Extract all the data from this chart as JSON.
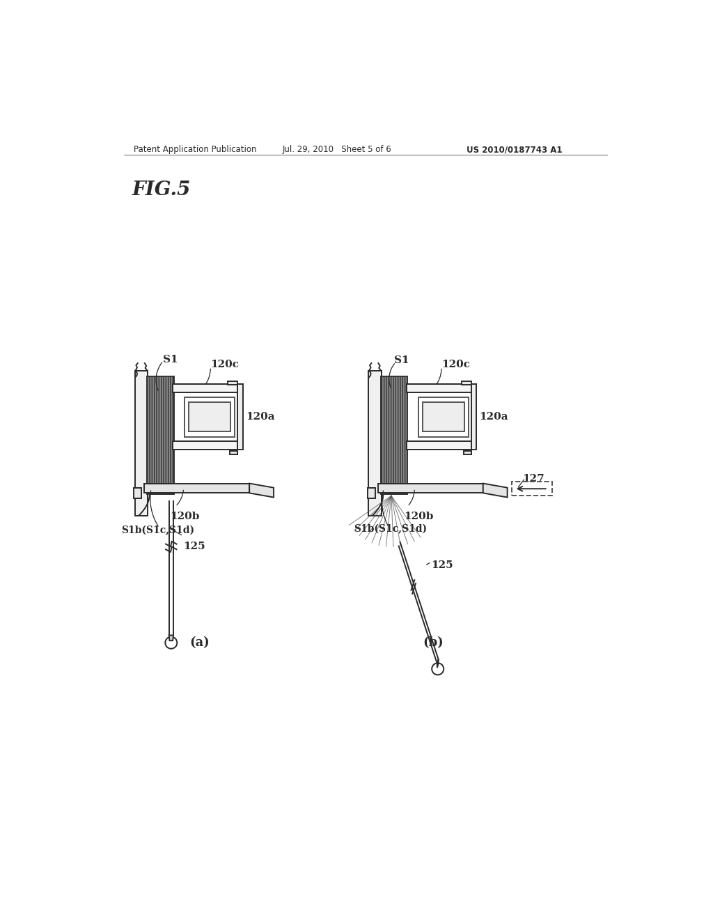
{
  "bg_color": "#ffffff",
  "text_color": "#1a1a1a",
  "line_color": "#2a2a2a",
  "hatch_color": "#555555",
  "header_left": "Patent Application Publication",
  "header_mid": "Jul. 29, 2010   Sheet 5 of 6",
  "header_right": "US 2010/0187743 A1",
  "fig_label": "FIG.5",
  "sub_a": "(a)",
  "sub_b": "(b)"
}
